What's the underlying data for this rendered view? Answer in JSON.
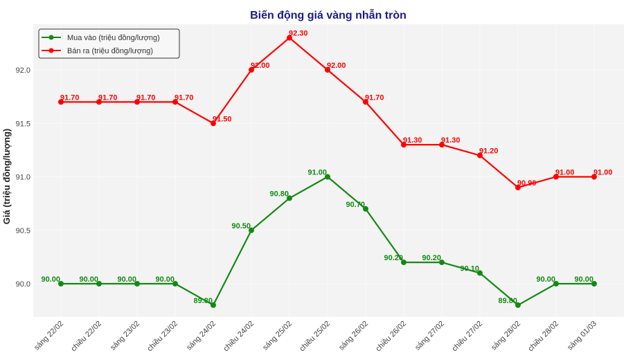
{
  "chart_data": {
    "type": "line",
    "title": "Biến động giá vàng nhẫn tròn",
    "xlabel": "",
    "ylabel": "Giá (triệu đồng/lượng)",
    "ylim": [
      89.7,
      92.4
    ],
    "yticks": [
      "90.0",
      "90.5",
      "91.0",
      "91.5",
      "92.0"
    ],
    "grid": true,
    "legend_position": "top-left",
    "categories": [
      "sáng 22/02",
      "chiều 22/02",
      "sáng 23/02",
      "chiều 23/02",
      "sáng 24/02",
      "chiều 24/02",
      "sáng 25/02",
      "chiều 25/02",
      "sáng 26/02",
      "chiều 26/02",
      "sáng 27/02",
      "chiều 27/02",
      "sáng 28/02",
      "chiều 28/02",
      "sáng 01/03"
    ],
    "series": [
      {
        "name": "Mua vào (triệu đồng/lượng)",
        "color": "#138a13",
        "values": [
          90.0,
          90.0,
          90.0,
          90.0,
          89.8,
          90.5,
          90.8,
          91.0,
          90.7,
          90.2,
          90.2,
          90.1,
          89.8,
          90.0,
          90.0
        ]
      },
      {
        "name": "Bán ra (triệu đồng/lượng)",
        "color": "#ff0000",
        "values": [
          91.7,
          91.7,
          91.7,
          91.7,
          91.5,
          92.0,
          92.3,
          92.0,
          91.7,
          91.3,
          91.3,
          91.2,
          90.9,
          91.0,
          91.0
        ]
      }
    ]
  }
}
